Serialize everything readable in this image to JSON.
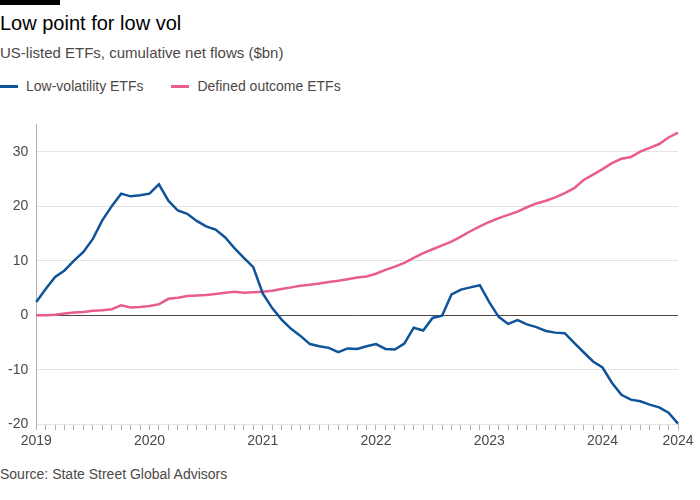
{
  "chart_data": {
    "type": "line",
    "title": "Low point for low vol",
    "subtitle": "US-listed ETFs, cumulative net flows ($bn)",
    "source": "Source: State Street Global Advisors",
    "categories": [
      "2019",
      null,
      null,
      null,
      null,
      null,
      null,
      null,
      null,
      null,
      null,
      null,
      "2020",
      null,
      null,
      null,
      null,
      null,
      null,
      null,
      null,
      null,
      null,
      null,
      "2021",
      null,
      null,
      null,
      null,
      null,
      null,
      null,
      null,
      null,
      null,
      null,
      "2022",
      null,
      null,
      null,
      null,
      null,
      null,
      null,
      null,
      null,
      null,
      null,
      "2023",
      null,
      null,
      null,
      null,
      null,
      null,
      null,
      null,
      null,
      null,
      null,
      "2024",
      null,
      null,
      null,
      null,
      null,
      null,
      null,
      "2024"
    ],
    "series": [
      {
        "name": "Low-volatility ETFs",
        "color": "#0f5499",
        "values": [
          2.4,
          4.8,
          7.0,
          8.2,
          10.0,
          11.6,
          14.0,
          17.4,
          20.0,
          22.3,
          21.8,
          22.0,
          22.3,
          24.0,
          21.0,
          19.2,
          18.6,
          17.3,
          16.3,
          15.7,
          14.3,
          12.3,
          10.5,
          8.8,
          4.0,
          1.3,
          -0.8,
          -2.5,
          -3.8,
          -5.3,
          -5.7,
          -6.0,
          -6.8,
          -6.1,
          -6.2,
          -5.7,
          -5.3,
          -6.2,
          -6.3,
          -5.2,
          -2.3,
          -2.8,
          -0.5,
          -0.1,
          3.8,
          4.7,
          5.1,
          5.5,
          2.4,
          -0.3,
          -1.6,
          -0.9,
          -1.7,
          -2.2,
          -2.9,
          -3.2,
          -3.3,
          -5.1,
          -6.8,
          -8.5,
          -9.6,
          -12.4,
          -14.6,
          -15.5,
          -15.8,
          -16.4,
          -16.9,
          -17.9,
          -19.9
        ]
      },
      {
        "name": "Defined outcome ETFs",
        "color": "#e95d8c",
        "values": [
          0,
          0,
          0.1,
          0.3,
          0.5,
          0.6,
          0.8,
          0.9,
          1.1,
          1.8,
          1.4,
          1.5,
          1.7,
          2.0,
          3.0,
          3.2,
          3.5,
          3.6,
          3.7,
          3.9,
          4.1,
          4.3,
          4.1,
          4.2,
          4.3,
          4.5,
          4.8,
          5.1,
          5.4,
          5.6,
          5.8,
          6.1,
          6.3,
          6.6,
          6.9,
          7.1,
          7.6,
          8.3,
          8.9,
          9.6,
          10.5,
          11.4,
          12.1,
          12.8,
          13.5,
          14.4,
          15.4,
          16.3,
          17.1,
          17.8,
          18.4,
          19.0,
          19.8,
          20.5,
          21.0,
          21.6,
          22.4,
          23.3,
          24.8,
          25.8,
          26.8,
          27.9,
          28.7,
          29.0,
          30.0,
          30.7,
          31.4,
          32.6,
          33.5
        ]
      }
    ],
    "ylim": [
      -20,
      35
    ],
    "yticks": [
      -20,
      -10,
      0,
      10,
      20,
      30
    ],
    "grid": true,
    "legend": "top-left"
  }
}
